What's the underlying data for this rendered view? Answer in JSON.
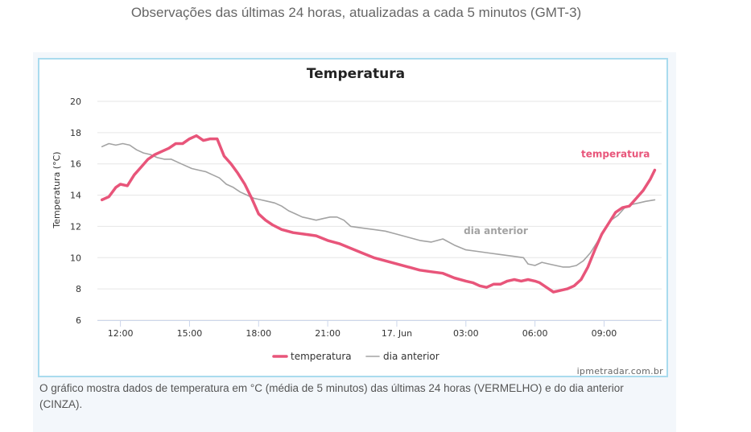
{
  "header": {
    "subtitle": "Observações das últimas 24 horas, atualizadas a cada 5 minutos (GMT-3)"
  },
  "caption": "O gráfico mostra dados de temperatura em °C (média de 5 minutos) das últimas 24 horas (VERMELHO) e do dia anterior (CINZA).",
  "credit": "ipmetradar.com.br",
  "chart_data": {
    "type": "line",
    "title": "Temperatura",
    "xlabel": "",
    "ylabel": "Temperatura (°C)",
    "ylim": [
      6,
      20
    ],
    "xlim": [
      11.0,
      35.5
    ],
    "yticks": [
      6,
      8,
      10,
      12,
      14,
      16,
      18,
      20
    ],
    "xticks": [
      {
        "x": 12,
        "label": "12:00"
      },
      {
        "x": 15,
        "label": "15:00"
      },
      {
        "x": 18,
        "label": "18:00"
      },
      {
        "x": 21,
        "label": "21:00"
      },
      {
        "x": 24,
        "label": "17. Jun"
      },
      {
        "x": 27,
        "label": "03:00"
      },
      {
        "x": 30,
        "label": "06:00"
      },
      {
        "x": 33,
        "label": "09:00"
      }
    ],
    "grid": true,
    "legend": "bottom-center",
    "series": [
      {
        "name": "temperatura",
        "color": "#e8557a",
        "x": [
          11.2,
          11.5,
          11.8,
          12.0,
          12.3,
          12.6,
          12.9,
          13.2,
          13.5,
          13.8,
          14.1,
          14.4,
          14.7,
          15.0,
          15.3,
          15.6,
          15.9,
          16.2,
          16.5,
          16.8,
          17.1,
          17.4,
          17.7,
          18.0,
          18.3,
          18.6,
          19.0,
          19.5,
          20.0,
          20.5,
          21.0,
          21.5,
          22.0,
          22.5,
          23.0,
          23.5,
          24.0,
          24.5,
          25.0,
          25.5,
          26.0,
          26.5,
          27.0,
          27.3,
          27.6,
          27.9,
          28.2,
          28.5,
          28.8,
          29.1,
          29.4,
          29.7,
          30.0,
          30.2,
          30.5,
          30.8,
          31.1,
          31.4,
          31.7,
          32.0,
          32.3,
          32.6,
          32.9,
          33.2,
          33.5,
          33.8,
          34.1,
          34.4,
          34.7,
          35.0,
          35.2
        ],
        "values": [
          13.7,
          13.9,
          14.5,
          14.7,
          14.6,
          15.3,
          15.8,
          16.3,
          16.6,
          16.8,
          17.0,
          17.3,
          17.3,
          17.6,
          17.8,
          17.5,
          17.6,
          17.6,
          16.5,
          16.0,
          15.4,
          14.7,
          13.8,
          12.8,
          12.4,
          12.1,
          11.8,
          11.6,
          11.5,
          11.4,
          11.1,
          10.9,
          10.6,
          10.3,
          10.0,
          9.8,
          9.6,
          9.4,
          9.2,
          9.1,
          9.0,
          8.7,
          8.5,
          8.4,
          8.2,
          8.1,
          8.3,
          8.3,
          8.5,
          8.6,
          8.5,
          8.6,
          8.5,
          8.4,
          8.1,
          7.8,
          7.9,
          8.0,
          8.2,
          8.6,
          9.4,
          10.5,
          11.5,
          12.2,
          12.9,
          13.2,
          13.3,
          13.8,
          14.3,
          15.0,
          15.6
        ]
      },
      {
        "name": "dia anterior",
        "color": "#a3a3a3",
        "x": [
          11.2,
          11.5,
          11.8,
          12.1,
          12.4,
          12.7,
          13.0,
          13.3,
          13.6,
          13.9,
          14.2,
          14.5,
          14.8,
          15.1,
          15.4,
          15.7,
          16.0,
          16.3,
          16.6,
          16.9,
          17.2,
          17.5,
          17.8,
          18.1,
          18.4,
          18.7,
          19.0,
          19.3,
          19.6,
          19.9,
          20.2,
          20.5,
          20.8,
          21.1,
          21.4,
          21.7,
          22.0,
          22.5,
          23.0,
          23.5,
          24.0,
          24.5,
          25.0,
          25.5,
          26.0,
          26.5,
          27.0,
          27.5,
          28.0,
          28.5,
          29.0,
          29.5,
          29.7,
          30.0,
          30.3,
          30.6,
          30.9,
          31.2,
          31.5,
          31.8,
          32.1,
          32.4,
          32.7,
          33.0,
          33.3,
          33.6,
          33.9,
          34.2,
          34.5,
          34.8,
          35.2
        ],
        "values": [
          17.1,
          17.3,
          17.2,
          17.3,
          17.2,
          16.9,
          16.7,
          16.6,
          16.4,
          16.3,
          16.3,
          16.1,
          15.9,
          15.7,
          15.6,
          15.5,
          15.3,
          15.1,
          14.7,
          14.5,
          14.2,
          14.0,
          13.8,
          13.7,
          13.6,
          13.5,
          13.3,
          13.0,
          12.8,
          12.6,
          12.5,
          12.4,
          12.5,
          12.6,
          12.6,
          12.4,
          12.0,
          11.9,
          11.8,
          11.7,
          11.5,
          11.3,
          11.1,
          11.0,
          11.2,
          10.8,
          10.5,
          10.4,
          10.3,
          10.2,
          10.1,
          10.0,
          9.6,
          9.5,
          9.7,
          9.6,
          9.5,
          9.4,
          9.4,
          9.5,
          9.8,
          10.3,
          11.0,
          11.8,
          12.4,
          12.7,
          13.2,
          13.4,
          13.5,
          13.6,
          13.7
        ]
      }
    ],
    "annotations": [
      {
        "text": "temperatura",
        "series": "temperatura"
      },
      {
        "text": "dia anterior",
        "series": "dia anterior"
      }
    ]
  }
}
